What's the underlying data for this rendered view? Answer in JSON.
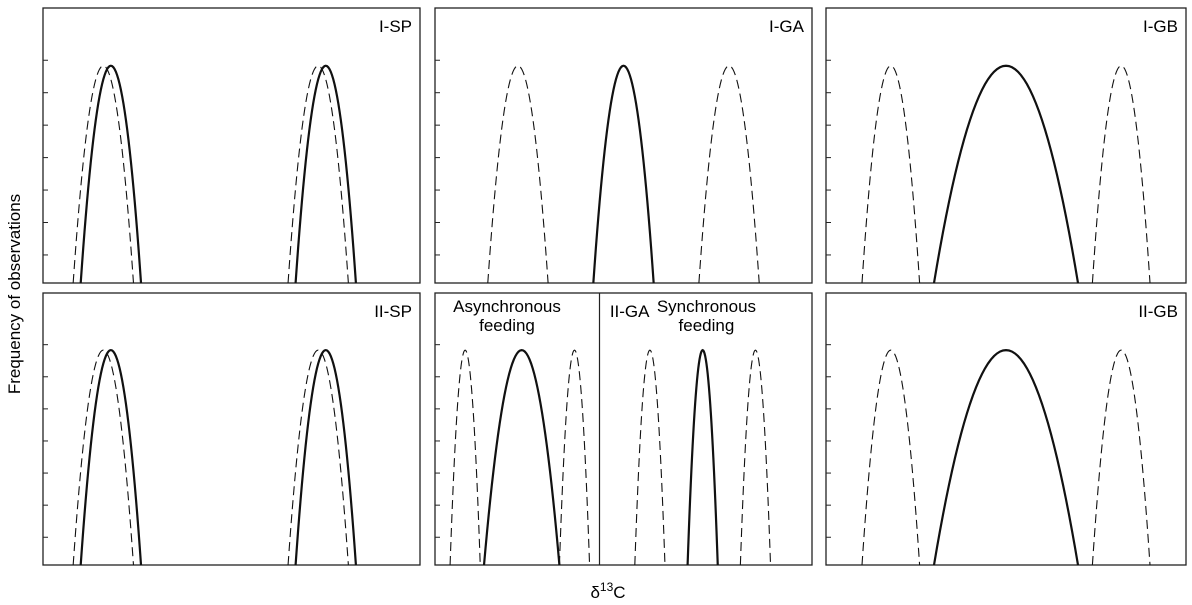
{
  "chart_data": {
    "type": "line",
    "ylabel": "Frequency of observations",
    "xlabel_html": {
      "base": "δ",
      "sup": "13",
      "tail": "C"
    },
    "panels": [
      {
        "label": "I-SP",
        "curves": [
          {
            "style": "dashed",
            "center": 0.16,
            "half_width": 0.08
          },
          {
            "style": "solid",
            "center": 0.18,
            "half_width": 0.08
          },
          {
            "style": "dashed",
            "center": 0.73,
            "half_width": 0.08
          },
          {
            "style": "solid",
            "center": 0.75,
            "half_width": 0.08
          }
        ]
      },
      {
        "label": "I-GA",
        "curves": [
          {
            "style": "dashed",
            "center": 0.22,
            "half_width": 0.08
          },
          {
            "style": "solid",
            "center": 0.5,
            "half_width": 0.08
          },
          {
            "style": "dashed",
            "center": 0.78,
            "half_width": 0.08
          }
        ]
      },
      {
        "label": "I-GB",
        "curves": [
          {
            "style": "dashed",
            "center": 0.18,
            "half_width": 0.08
          },
          {
            "style": "solid",
            "center": 0.5,
            "half_width": 0.2
          },
          {
            "style": "dashed",
            "center": 0.82,
            "half_width": 0.08
          }
        ]
      },
      {
        "label": "II-SP",
        "curves": [
          {
            "style": "dashed",
            "center": 0.16,
            "half_width": 0.08
          },
          {
            "style": "solid",
            "center": 0.18,
            "half_width": 0.08
          },
          {
            "style": "dashed",
            "center": 0.73,
            "half_width": 0.08
          },
          {
            "style": "solid",
            "center": 0.75,
            "half_width": 0.08
          }
        ]
      },
      {
        "label": "II-GA",
        "annotations": [
          "Asynchronous",
          "feeding",
          "Synchronous",
          "feeding"
        ],
        "curves": [
          {
            "style": "dashed",
            "center": 0.08,
            "half_width": 0.04
          },
          {
            "style": "solid",
            "center": 0.23,
            "half_width": 0.1
          },
          {
            "style": "dashed",
            "center": 0.37,
            "half_width": 0.04
          },
          {
            "style": "dashed",
            "center": 0.57,
            "half_width": 0.04
          },
          {
            "style": "solid",
            "center": 0.71,
            "half_width": 0.04
          },
          {
            "style": "dashed",
            "center": 0.85,
            "half_width": 0.04
          }
        ]
      },
      {
        "label": "II-GB",
        "curves": [
          {
            "style": "dashed",
            "center": 0.18,
            "half_width": 0.08
          },
          {
            "style": "solid",
            "center": 0.5,
            "half_width": 0.2
          },
          {
            "style": "dashed",
            "center": 0.82,
            "half_width": 0.08
          }
        ]
      }
    ]
  }
}
